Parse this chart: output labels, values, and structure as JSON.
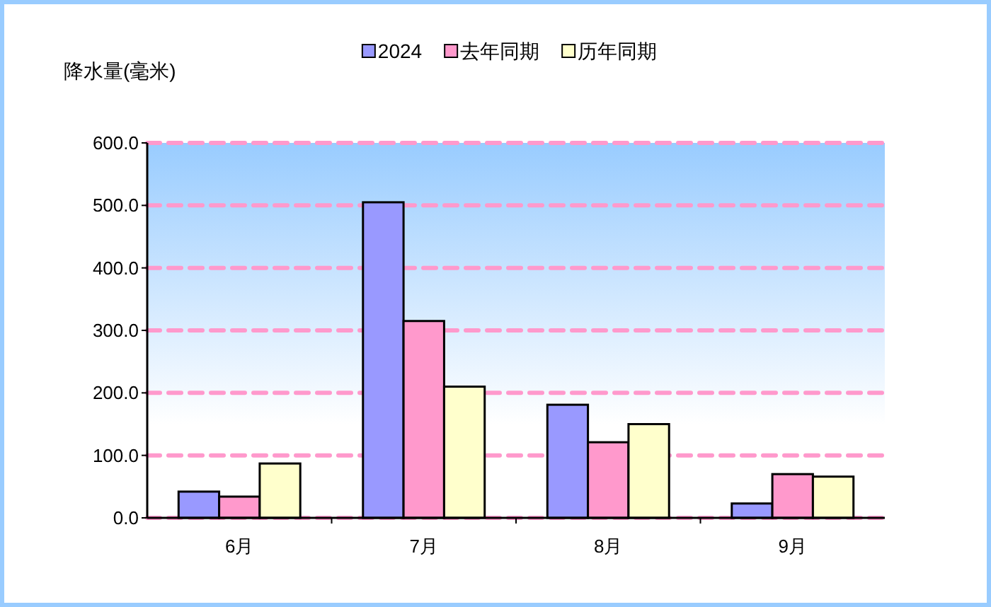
{
  "chart_data": {
    "type": "bar",
    "ylabel": "降水量(毫米)",
    "legend": "top",
    "grid": "y",
    "categories": [
      "6月",
      "7月",
      "8月",
      "9月"
    ],
    "series": [
      {
        "name": "2024",
        "color": "#9999ff",
        "values": [
          42,
          505,
          181,
          23
        ]
      },
      {
        "name": "去年同期",
        "color": "#ff99cc",
        "values": [
          34,
          315,
          121,
          70
        ]
      },
      {
        "name": "历年同期",
        "color": "#ffffcc",
        "values": [
          87,
          210,
          150,
          66
        ]
      }
    ],
    "ylim": [
      0,
      600
    ],
    "yticks": [
      {
        "value": 0,
        "label": "0.0"
      },
      {
        "value": 100,
        "label": "100.0"
      },
      {
        "value": 200,
        "label": "200.0"
      },
      {
        "value": 300,
        "label": "300.0"
      },
      {
        "value": 400,
        "label": "400.0"
      },
      {
        "value": 500,
        "label": "500.0"
      },
      {
        "value": 600,
        "label": "600.0"
      }
    ]
  }
}
